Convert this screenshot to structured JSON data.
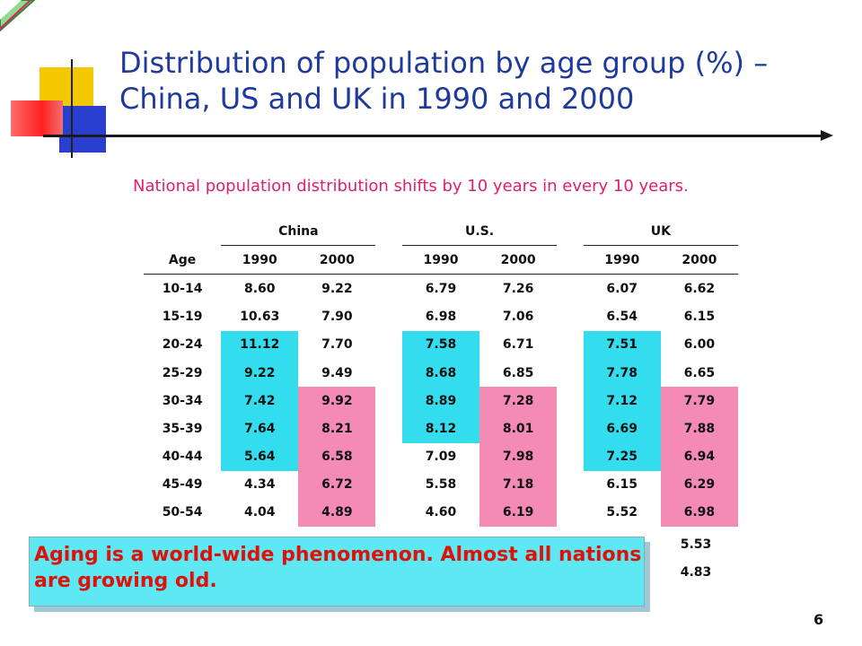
{
  "title": "Distribution of population by age group (%) – China, US and UK in 1990 and 2000",
  "subtitle": "National population distribution shifts by 10 years in every 10 years.",
  "table": {
    "groups": [
      "China",
      "U.S.",
      "UK"
    ],
    "age_header": "Age",
    "years": [
      "1990",
      "2000",
      "1990",
      "2000",
      "1990",
      "2000"
    ],
    "rows": [
      {
        "age": "10-14",
        "v": [
          "8.60",
          "9.22",
          "6.79",
          "7.26",
          "6.07",
          "6.62"
        ]
      },
      {
        "age": "15-19",
        "v": [
          "10.63",
          "7.90",
          "6.98",
          "7.06",
          "6.54",
          "6.15"
        ]
      },
      {
        "age": "20-24",
        "v": [
          "11.12",
          "7.70",
          "7.58",
          "6.71",
          "7.51",
          "6.00"
        ]
      },
      {
        "age": "25-29",
        "v": [
          "9.22",
          "9.49",
          "8.68",
          "6.85",
          "7.78",
          "6.65"
        ]
      },
      {
        "age": "30-34",
        "v": [
          "7.42",
          "9.92",
          "8.89",
          "7.28",
          "7.12",
          "7.79"
        ]
      },
      {
        "age": "35-39",
        "v": [
          "7.64",
          "8.21",
          "8.12",
          "8.01",
          "6.69",
          "7.88"
        ]
      },
      {
        "age": "40-44",
        "v": [
          "5.64",
          "6.58",
          "7.09",
          "7.98",
          "7.25",
          "6.94"
        ]
      },
      {
        "age": "45-49",
        "v": [
          "4.34",
          "6.72",
          "5.58",
          "7.18",
          "6.15",
          "6.29"
        ]
      },
      {
        "age": "50-54",
        "v": [
          "4.04",
          "4.89",
          "4.60",
          "6.19",
          "5.52",
          "6.98"
        ]
      }
    ],
    "partial_values": [
      "5.53",
      "4.83"
    ]
  },
  "callout": "Aging is a world-wide phenomenon.  Almost all nations are growing old.",
  "page_number": "6",
  "colors": {
    "title": "#1f3a9a",
    "subtitle": "#e0206a",
    "cyan_highlight": "#33ddee",
    "pink_highlight": "#f38bb5",
    "callout_bg": "#5de8f3",
    "callout_text": "#e0100a"
  },
  "icons": [
    "corner-triangle-icon"
  ]
}
